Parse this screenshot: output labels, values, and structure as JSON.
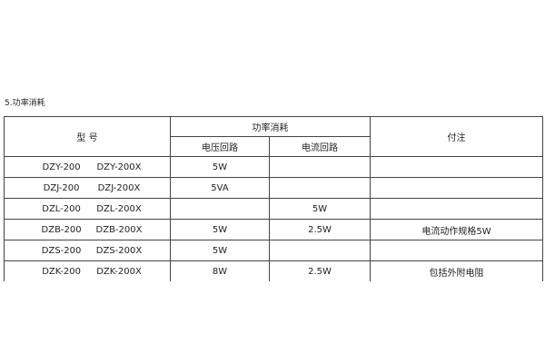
{
  "section_title": "5.功率消耗",
  "headers": {
    "model": "型 号",
    "power": "功率消耗",
    "voltage": "电压回路",
    "current": "电流回路",
    "note": "付注"
  },
  "rows": [
    {
      "model_a": "DZY-200",
      "model_b": "DZY-200X",
      "voltage": "5W",
      "current": "",
      "note": ""
    },
    {
      "model_a": "DZJ-200",
      "model_b": "DZJ-200X",
      "voltage": "5VA",
      "current": "",
      "note": ""
    },
    {
      "model_a": "DZL-200",
      "model_b": "DZL-200X",
      "voltage": "",
      "current": "5W",
      "note": ""
    },
    {
      "model_a": "DZB-200",
      "model_b": "DZB-200X",
      "voltage": "5W",
      "current": "2.5W",
      "note": "电流动作规格5W"
    },
    {
      "model_a": "DZS-200",
      "model_b": "DZS-200X",
      "voltage": "5W",
      "current": "",
      "note": ""
    },
    {
      "model_a": "DZK-200",
      "model_b": "DZK-200X",
      "voltage": "8W",
      "current": "2.5W",
      "note": "包括外附电阻"
    }
  ]
}
